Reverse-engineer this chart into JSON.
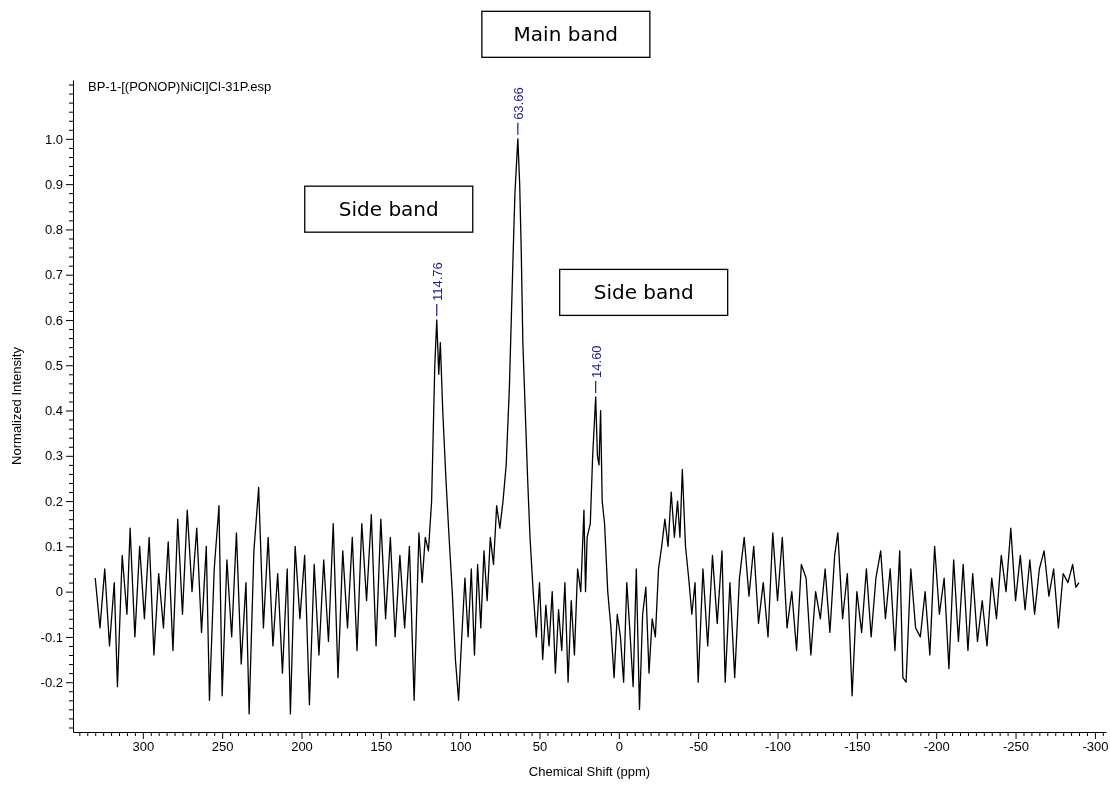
{
  "chart_data": {
    "type": "line",
    "title": "BP-1-[(PONOP)NiCl]Cl-31P.esp",
    "xlabel": "Chemical Shift (ppm)",
    "ylabel": "Normalized Intensity",
    "xlim": [
      344,
      -307
    ],
    "ylim": [
      -0.31,
      1.13
    ],
    "xticks": [
      300,
      250,
      200,
      150,
      100,
      50,
      0,
      -50,
      -100,
      -150,
      -200,
      -250,
      -300,
      {
        "value": 340,
        "label": null
      },
      {
        "value": 335,
        "label": null
      },
      {
        "value": 330,
        "label": null
      },
      {
        "value": 325,
        "label": null
      },
      {
        "value": 320,
        "label": null
      },
      {
        "value": 315,
        "label": null
      },
      {
        "value": 310,
        "label": null
      },
      {
        "value": 305,
        "label": null
      },
      {
        "value": 295,
        "label": null
      },
      {
        "value": 290,
        "label": null
      },
      {
        "value": 285,
        "label": null
      },
      {
        "value": 280,
        "label": null
      },
      {
        "value": 275,
        "label": null
      },
      {
        "value": 270,
        "label": null
      },
      {
        "value": 265,
        "label": null
      },
      {
        "value": 260,
        "label": null
      },
      {
        "value": 255,
        "label": null
      },
      {
        "value": 245,
        "label": null
      },
      {
        "value": 240,
        "label": null
      },
      {
        "value": 235,
        "label": null
      },
      {
        "value": 230,
        "label": null
      },
      {
        "value": 225,
        "label": null
      },
      {
        "value": 220,
        "label": null
      },
      {
        "value": 215,
        "label": null
      },
      {
        "value": 210,
        "label": null
      },
      {
        "value": 205,
        "label": null
      },
      {
        "value": 195,
        "label": null
      },
      {
        "value": 190,
        "label": null
      },
      {
        "value": 185,
        "label": null
      },
      {
        "value": 180,
        "label": null
      },
      {
        "value": 175,
        "label": null
      },
      {
        "value": 170,
        "label": null
      },
      {
        "value": 165,
        "label": null
      },
      {
        "value": 160,
        "label": null
      },
      {
        "value": 155,
        "label": null
      },
      {
        "value": 145,
        "label": null
      },
      {
        "value": 140,
        "label": null
      },
      {
        "value": 135,
        "label": null
      },
      {
        "value": 130,
        "label": null
      },
      {
        "value": 125,
        "label": null
      },
      {
        "value": 120,
        "label": null
      },
      {
        "value": 115,
        "label": null
      },
      {
        "value": 110,
        "label": null
      },
      {
        "value": 105,
        "label": null
      },
      {
        "value": 95,
        "label": null
      },
      {
        "value": 90,
        "label": null
      },
      {
        "value": 85,
        "label": null
      },
      {
        "value": 80,
        "label": null
      },
      {
        "value": 75,
        "label": null
      },
      {
        "value": 70,
        "label": null
      },
      {
        "value": 65,
        "label": null
      },
      {
        "value": 60,
        "label": null
      },
      {
        "value": 55,
        "label": null
      },
      {
        "value": 45,
        "label": null
      },
      {
        "value": 40,
        "label": null
      },
      {
        "value": 35,
        "label": null
      },
      {
        "value": 30,
        "label": null
      },
      {
        "value": 25,
        "label": null
      },
      {
        "value": 20,
        "label": null
      },
      {
        "value": 15,
        "label": null
      },
      {
        "value": 10,
        "label": null
      },
      {
        "value": 5,
        "label": null
      },
      {
        "value": -5,
        "label": null
      },
      {
        "value": -10,
        "label": null
      },
      {
        "value": -15,
        "label": null
      },
      {
        "value": -20,
        "label": null
      },
      {
        "value": -25,
        "label": null
      },
      {
        "value": -30,
        "label": null
      },
      {
        "value": -35,
        "label": null
      },
      {
        "value": -40,
        "label": null
      },
      {
        "value": -45,
        "label": null
      },
      {
        "value": -55,
        "label": null
      },
      {
        "value": -60,
        "label": null
      },
      {
        "value": -65,
        "label": null
      },
      {
        "value": -70,
        "label": null
      },
      {
        "value": -75,
        "label": null
      },
      {
        "value": -80,
        "label": null
      },
      {
        "value": -85,
        "label": null
      },
      {
        "value": -90,
        "label": null
      },
      {
        "value": -95,
        "label": null
      },
      {
        "value": -105,
        "label": null
      },
      {
        "value": -110,
        "label": null
      },
      {
        "value": -115,
        "label": null
      },
      {
        "value": -120,
        "label": null
      },
      {
        "value": -125,
        "label": null
      },
      {
        "value": -130,
        "label": null
      },
      {
        "value": -135,
        "label": null
      },
      {
        "value": -140,
        "label": null
      },
      {
        "value": -145,
        "label": null
      },
      {
        "value": -155,
        "label": null
      },
      {
        "value": -160,
        "label": null
      },
      {
        "value": -165,
        "label": null
      },
      {
        "value": -170,
        "label": null
      },
      {
        "value": -175,
        "label": null
      },
      {
        "value": -180,
        "label": null
      },
      {
        "value": -185,
        "label": null
      },
      {
        "value": -190,
        "label": null
      },
      {
        "value": -195,
        "label": null
      },
      {
        "value": -205,
        "label": null
      },
      {
        "value": -210,
        "label": null
      },
      {
        "value": -215,
        "label": null
      },
      {
        "value": -220,
        "label": null
      },
      {
        "value": -225,
        "label": null
      },
      {
        "value": -230,
        "label": null
      },
      {
        "value": -235,
        "label": null
      },
      {
        "value": -240,
        "label": null
      },
      {
        "value": -245,
        "label": null
      },
      {
        "value": -255,
        "label": null
      },
      {
        "value": -260,
        "label": null
      },
      {
        "value": -265,
        "label": null
      },
      {
        "value": -270,
        "label": null
      },
      {
        "value": -275,
        "label": null
      },
      {
        "value": -280,
        "label": null
      },
      {
        "value": -285,
        "label": null
      },
      {
        "value": -290,
        "label": null
      },
      {
        "value": -295,
        "label": null
      },
      {
        "value": -305,
        "label": null
      }
    ],
    "yticks": [
      {
        "value": 1,
        "label": "1.0"
      },
      0.9,
      0.8,
      0.7,
      0.6,
      0.5,
      0.4,
      0.3,
      0.2,
      0.1,
      0,
      -0.1,
      -0.2,
      {
        "value": 1.12,
        "label": null
      },
      {
        "value": 1.1,
        "label": null
      },
      {
        "value": 1.08,
        "label": null
      },
      {
        "value": 1.06,
        "label": null
      },
      {
        "value": 1.04,
        "label": null
      },
      {
        "value": 1.02,
        "label": null
      },
      {
        "value": 0.98,
        "label": null
      },
      {
        "value": 0.96,
        "label": null
      },
      {
        "value": 0.94,
        "label": null
      },
      {
        "value": 0.92,
        "label": null
      },
      {
        "value": 0.88,
        "label": null
      },
      {
        "value": 0.86,
        "label": null
      },
      {
        "value": 0.84,
        "label": null
      },
      {
        "value": 0.82,
        "label": null
      },
      {
        "value": 0.78,
        "label": null
      },
      {
        "value": 0.76,
        "label": null
      },
      {
        "value": 0.74,
        "label": null
      },
      {
        "value": 0.72,
        "label": null
      },
      {
        "value": 0.68,
        "label": null
      },
      {
        "value": 0.66,
        "label": null
      },
      {
        "value": 0.64,
        "label": null
      },
      {
        "value": 0.62,
        "label": null
      },
      {
        "value": 0.58,
        "label": null
      },
      {
        "value": 0.56,
        "label": null
      },
      {
        "value": 0.54,
        "label": null
      },
      {
        "value": 0.52,
        "label": null
      },
      {
        "value": 0.48,
        "label": null
      },
      {
        "value": 0.46,
        "label": null
      },
      {
        "value": 0.44,
        "label": null
      },
      {
        "value": 0.42,
        "label": null
      },
      {
        "value": 0.38,
        "label": null
      },
      {
        "value": 0.36,
        "label": null
      },
      {
        "value": 0.34,
        "label": null
      },
      {
        "value": 0.32,
        "label": null
      },
      {
        "value": 0.28,
        "label": null
      },
      {
        "value": 0.26,
        "label": null
      },
      {
        "value": 0.24,
        "label": null
      },
      {
        "value": 0.22,
        "label": null
      },
      {
        "value": 0.18,
        "label": null
      },
      {
        "value": 0.16,
        "label": null
      },
      {
        "value": 0.14,
        "label": null
      },
      {
        "value": 0.12,
        "label": null
      },
      {
        "value": 0.08,
        "label": null
      },
      {
        "value": 0.06,
        "label": null
      },
      {
        "value": 0.04,
        "label": null
      },
      {
        "value": 0.02,
        "label": null
      },
      {
        "value": -0.02,
        "label": null
      },
      {
        "value": -0.04,
        "label": null
      },
      {
        "value": -0.06,
        "label": null
      },
      {
        "value": -0.08,
        "label": null
      },
      {
        "value": -0.12,
        "label": null
      },
      {
        "value": -0.14,
        "label": null
      },
      {
        "value": -0.16,
        "label": null
      },
      {
        "value": -0.18,
        "label": null
      },
      {
        "value": -0.22,
        "label": null
      },
      {
        "value": -0.24,
        "label": null
      },
      {
        "value": -0.26,
        "label": null
      },
      {
        "value": -0.28,
        "label": null
      },
      {
        "value": -0.3,
        "label": null
      }
    ],
    "grid": false,
    "marker": "none",
    "line_style": "solid",
    "annotations": [
      {
        "text": "114.76",
        "x": 114.76,
        "y": 0.6
      },
      {
        "text": "63.66",
        "x": 63.66,
        "y": 1.0
      },
      {
        "text": "14.60",
        "x": 14.6,
        "y": 0.43
      },
      "Side band",
      "Main band",
      "Side band"
    ],
    "series": [
      {
        "color": "#000000",
        "x": [
          330,
          327,
          324,
          321,
          318,
          316,
          313,
          310,
          308,
          305,
          302,
          299,
          296,
          293,
          290,
          287,
          284,
          281,
          278,
          275,
          272,
          269,
          266,
          263,
          260,
          258,
          255,
          252,
          250,
          247,
          244,
          241,
          238,
          235,
          233,
          230,
          227,
          224,
          221,
          218,
          215,
          212,
          209,
          207,
          204,
          201,
          198,
          195,
          192,
          189,
          186,
          183,
          180,
          177,
          174,
          171,
          168,
          165,
          162,
          159,
          156,
          153,
          150,
          147,
          144,
          141,
          138,
          135,
          132,
          129,
          126,
          124,
          122,
          120,
          118,
          117,
          116,
          114.76,
          113.5,
          112.5,
          111,
          109,
          107,
          105,
          103,
          101,
          99,
          97,
          95,
          93,
          91,
          89,
          87,
          85,
          83,
          81,
          79,
          77,
          75,
          73,
          71,
          69,
          67,
          65.5,
          63.66,
          62.5,
          61.5,
          60.5,
          59,
          57.5,
          56,
          54,
          52,
          50,
          48,
          46,
          44,
          42,
          40,
          38,
          36,
          34,
          32,
          30,
          28,
          26,
          24,
          22,
          21,
          20,
          18,
          16.5,
          14.6,
          13.5,
          12.5,
          11.5,
          10.5,
          9,
          7,
          5,
          3,
          1,
          -1,
          -3,
          -5,
          -7,
          -9,
          -11,
          -13,
          -15,
          -17,
          -19,
          -21,
          -23,
          -25,
          -27,
          -29,
          -31,
          -33,
          -35,
          -37,
          -38.5,
          -40,
          -42,
          -44,
          -46,
          -48,
          -50,
          -53,
          -56,
          -59,
          -62,
          -65,
          -67,
          -70,
          -73,
          -76,
          -79,
          -82,
          -85,
          -88,
          -91,
          -94,
          -97,
          -100,
          -103,
          -106,
          -109,
          -112,
          -115,
          -118,
          -121,
          -124,
          -127,
          -130,
          -133,
          -136,
          -138,
          -141,
          -144,
          -147,
          -150,
          -153,
          -156,
          -159,
          -162,
          -165,
          -168,
          -171,
          -174,
          -177,
          -179,
          -181,
          -184,
          -187,
          -190,
          -193,
          -196,
          -199,
          -202,
          -205,
          -208,
          -211,
          -214,
          -217,
          -220,
          -223,
          -226,
          -229,
          -232,
          -235,
          -238,
          -241,
          -244,
          -247,
          -250,
          -253,
          -256,
          -259,
          -262,
          -265,
          -268,
          -271,
          -274,
          -277,
          -280,
          -283,
          -286,
          -288,
          -290
        ],
        "values": [
          0.03,
          -0.08,
          0.05,
          -0.12,
          0.02,
          -0.21,
          0.08,
          -0.05,
          0.14,
          -0.1,
          0.1,
          -0.06,
          0.12,
          -0.14,
          0.04,
          -0.08,
          0.11,
          -0.13,
          0.16,
          -0.05,
          0.18,
          0,
          0.14,
          -0.09,
          0.1,
          -0.24,
          0.05,
          0.19,
          -0.23,
          0.07,
          -0.1,
          0.13,
          -0.16,
          0.02,
          -0.27,
          0.09,
          0.23,
          -0.08,
          0.12,
          -0.12,
          0.04,
          -0.18,
          0.05,
          -0.27,
          0.1,
          -0.06,
          0.08,
          -0.25,
          0.06,
          -0.14,
          0.07,
          -0.11,
          0.15,
          -0.19,
          0.09,
          -0.08,
          0.12,
          -0.13,
          0.15,
          -0.02,
          0.17,
          -0.12,
          0.16,
          -0.06,
          0.12,
          -0.1,
          0.08,
          -0.08,
          0.1,
          -0.24,
          0.13,
          0.02,
          0.12,
          0.09,
          0.2,
          0.35,
          0.5,
          0.6,
          0.48,
          0.55,
          0.4,
          0.25,
          0.12,
          0,
          -0.15,
          -0.24,
          -0.1,
          0.03,
          -0.1,
          0.05,
          -0.14,
          0.06,
          -0.08,
          0.09,
          -0.02,
          0.12,
          0.06,
          0.19,
          0.14,
          0.2,
          0.28,
          0.45,
          0.7,
          0.88,
          1.0,
          0.9,
          0.75,
          0.55,
          0.4,
          0.25,
          0.12,
          0,
          -0.1,
          0.02,
          -0.15,
          -0.03,
          -0.12,
          0,
          -0.18,
          -0.04,
          -0.13,
          0.02,
          -0.2,
          -0.02,
          -0.14,
          0.05,
          0,
          0.18,
          0,
          0.12,
          0.15,
          0.3,
          0.43,
          0.3,
          0.28,
          0.4,
          0.2,
          0.15,
          0,
          -0.08,
          -0.19,
          -0.05,
          -0.1,
          -0.2,
          0.02,
          -0.09,
          -0.21,
          0.05,
          -0.26,
          -0.05,
          0.01,
          -0.18,
          -0.06,
          -0.1,
          0.05,
          0.1,
          0.16,
          0.1,
          0.22,
          0.12,
          0.2,
          0.12,
          0.27,
          0.1,
          0.03,
          -0.05,
          0.02,
          -0.2,
          0.05,
          -0.12,
          0.08,
          -0.07,
          0.09,
          -0.2,
          0.02,
          -0.19,
          0.03,
          0.12,
          -0.01,
          0.1,
          -0.07,
          0.02,
          -0.1,
          0.13,
          -0.02,
          0.12,
          -0.08,
          0,
          -0.13,
          0.06,
          0.03,
          -0.14,
          0,
          -0.06,
          0.05,
          -0.09,
          0.08,
          0.13,
          -0.06,
          0.04,
          -0.23,
          0,
          -0.09,
          0.05,
          -0.1,
          0.03,
          0.09,
          -0.06,
          0.05,
          -0.13,
          0.09,
          -0.19,
          -0.2,
          0.05,
          -0.08,
          -0.1,
          0,
          -0.14,
          0.1,
          -0.05,
          0.03,
          -0.17,
          0.07,
          -0.11,
          0.06,
          -0.13,
          0.04,
          -0.11,
          -0.02,
          -0.12,
          0.03,
          -0.06,
          0.08,
          0,
          0.14,
          -0.02,
          0.08,
          -0.04,
          0.07,
          -0.05,
          0.05,
          0.09,
          -0.01,
          0.05,
          -0.08,
          0.04,
          0.02,
          0.06,
          0.01,
          0.02
        ]
      }
    ]
  }
}
